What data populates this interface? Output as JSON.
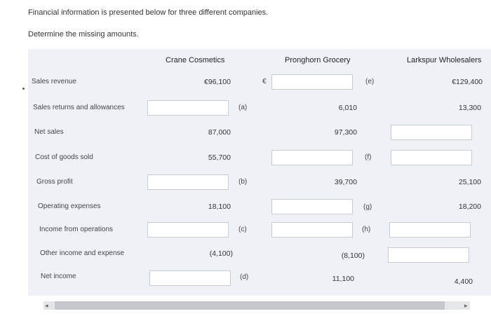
{
  "intro": {
    "line1": "Financial information is presented below for three different companies.",
    "line2": "Determine the missing amounts."
  },
  "columns": {
    "crane": "Crane Cosmetics",
    "pronghorn": "Pronghorn Grocery",
    "larkspur": "Larkspur Wholesalers"
  },
  "rows": {
    "sales_revenue": {
      "label": "Sales revenue",
      "crane": "€96,100",
      "pronghorn_currency": "€",
      "pronghorn_tag": "(e)",
      "larkspur": "€129,400"
    },
    "returns": {
      "label": "Sales returns and allowances",
      "crane_tag": "(a)",
      "pronghorn": "6,010",
      "larkspur": "13,300"
    },
    "net_sales": {
      "label": "Net sales",
      "crane": "87,000",
      "pronghorn": "97,300"
    },
    "cogs": {
      "label": "Cost of goods sold",
      "crane": "55,700",
      "pronghorn_tag": "(f)"
    },
    "gross_profit": {
      "label": "Gross profit",
      "crane_tag": "(b)",
      "pronghorn": "39,700",
      "larkspur": "25,100"
    },
    "opex": {
      "label": "Operating expenses",
      "crane": "18,100",
      "pronghorn_tag": "(g)",
      "larkspur": "18,200"
    },
    "income_ops": {
      "label": "Income from operations",
      "crane_tag": "(c)",
      "pronghorn_tag": "(h)"
    },
    "other": {
      "label": "Other income and expense",
      "crane": "(4,100)",
      "pronghorn": "(8,100)"
    },
    "net_income": {
      "label": "Net income",
      "crane_tag": "(d)",
      "pronghorn": "11,100",
      "larkspur": "4,400"
    }
  },
  "scrollbar": {
    "left_arrow": "◂",
    "right_arrow": "▸"
  }
}
